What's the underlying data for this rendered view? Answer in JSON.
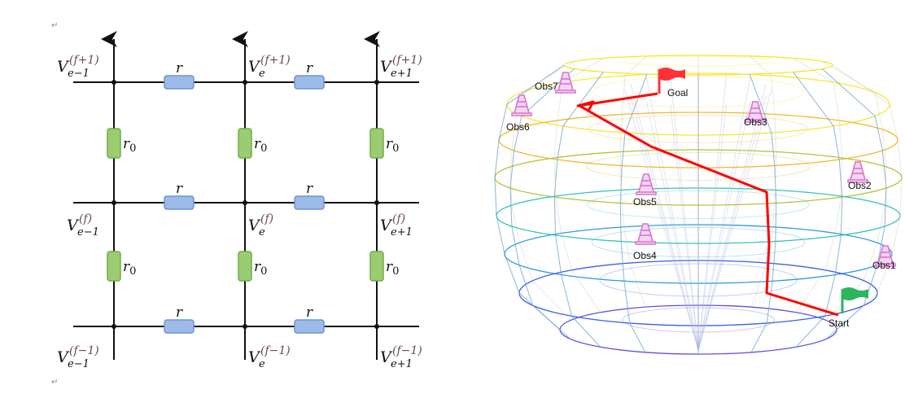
{
  "paragraph_marks": [
    "↵",
    "↵"
  ],
  "grid": {
    "resistor_label": "r",
    "rung_label": "r",
    "rung_subscript": "0",
    "colors": {
      "horizontal_resistor": "#9dbbe8",
      "vertical_resistor": "#9ccc72"
    },
    "nodes": [
      {
        "v": "V",
        "sub": "e−1",
        "sup": "(f+1)"
      },
      {
        "v": "V",
        "sub": "e",
        "sup": "(f+1)"
      },
      {
        "v": "V",
        "sub": "e+1",
        "sup": "(f+1)"
      },
      {
        "v": "V",
        "sub": "e−1",
        "sup": "(f)"
      },
      {
        "v": "V",
        "sub": "e",
        "sup": "(f)"
      },
      {
        "v": "V",
        "sub": "e+1",
        "sup": "(f)"
      },
      {
        "v": "V",
        "sub": "e−1",
        "sup": "(f−1)"
      },
      {
        "v": "V",
        "sub": "e",
        "sup": "(f−1)"
      },
      {
        "v": "V",
        "sub": "e+1",
        "sup": "(f−1)"
      }
    ]
  },
  "mesh": {
    "goal_label": "Goal",
    "start_label": "Start",
    "path_color": "#ff0000",
    "goal_flag_color": "#ff3333",
    "start_flag_color": "#2db55d",
    "obstacle_color": "#d975d0",
    "obstacles": [
      "Obs1",
      "Obs2",
      "Obs3",
      "Obs4",
      "Obs5",
      "Obs6",
      "Obs7"
    ]
  }
}
